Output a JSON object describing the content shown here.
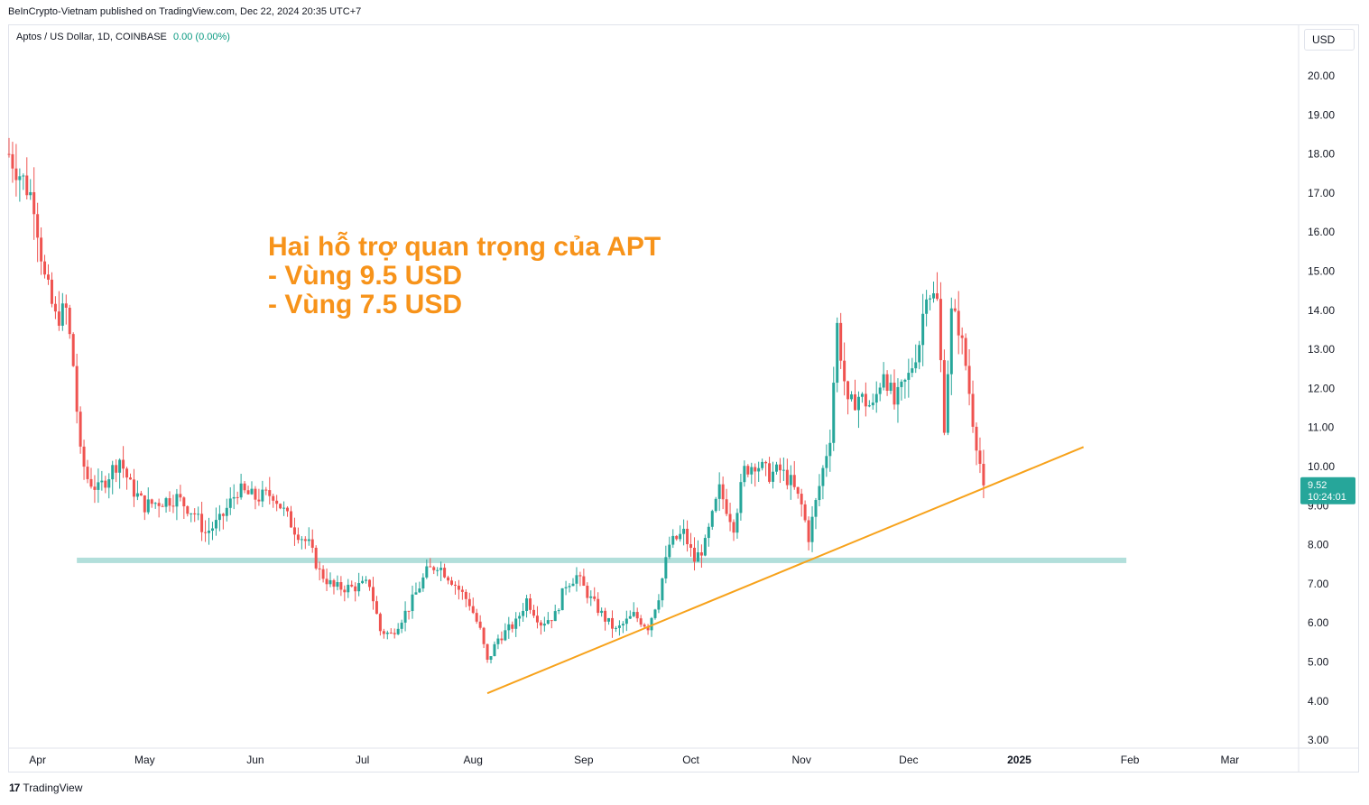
{
  "header": {
    "published": "BeInCrypto-Vietnam published on TradingView.com, Dec 22, 2024 20:35 UTC+7"
  },
  "symbol_bar": {
    "title": "Aptos / US Dollar, 1D, COINBASE",
    "change": "0.00 (0.00%)"
  },
  "currency_button": "USD",
  "footer": {
    "logo_text": "TradingView",
    "logo_mark": "17"
  },
  "colors": {
    "up": "#26a69a",
    "down": "#ef5350",
    "trendline": "#f7a21b",
    "support_zone": "#b2dfdb",
    "annotation": "#f7931a"
  },
  "chart_data": {
    "type": "candlestick",
    "annotation_lines": [
      "Hai hỗ trợ quan trọng của APT",
      "- Vùng 9.5 USD",
      "- Vùng 7.5 USD"
    ],
    "x_labels": [
      "Apr",
      "May",
      "Jun",
      "Jul",
      "Aug",
      "Sep",
      "Oct",
      "Nov",
      "Dec",
      "2025",
      "Feb",
      "Mar"
    ],
    "y_ticks": [
      "20.00",
      "19.00",
      "18.00",
      "17.00",
      "16.00",
      "15.00",
      "14.00",
      "13.00",
      "12.00",
      "11.00",
      "10.00",
      "9.00",
      "8.00",
      "7.00",
      "6.00",
      "5.00",
      "4.00",
      "3.00"
    ],
    "ylim": [
      3,
      21
    ],
    "x_range": [
      "2024-03-24",
      "2025-03-20"
    ],
    "last_price": {
      "value": "9.52",
      "countdown": "10:24:01"
    },
    "support_zone": {
      "value": 7.6,
      "from": "2024-04-12",
      "to": "2025-01-31"
    },
    "trendline": {
      "from": [
        "2024-08-05",
        4.2
      ],
      "to": [
        "2025-01-19",
        10.5
      ]
    },
    "keypoints": [
      [
        "2024-03-24",
        18.0
      ],
      [
        "2024-03-27",
        17.5
      ],
      [
        "2024-03-31",
        16.8
      ],
      [
        "2024-04-03",
        14.8
      ],
      [
        "2024-04-06",
        13.8
      ],
      [
        "2024-04-09",
        14.0
      ],
      [
        "2024-04-11",
        12.6
      ],
      [
        "2024-04-13",
        10.3
      ],
      [
        "2024-04-15",
        9.7
      ],
      [
        "2024-04-18",
        9.4
      ],
      [
        "2024-04-21",
        9.8
      ],
      [
        "2024-04-24",
        10.2
      ],
      [
        "2024-04-27",
        9.5
      ],
      [
        "2024-05-01",
        9.0
      ],
      [
        "2024-05-05",
        9.1
      ],
      [
        "2024-05-10",
        9.2
      ],
      [
        "2024-05-15",
        8.8
      ],
      [
        "2024-05-18",
        8.3
      ],
      [
        "2024-05-22",
        8.6
      ],
      [
        "2024-05-27",
        9.4
      ],
      [
        "2024-06-01",
        9.2
      ],
      [
        "2024-06-06",
        9.3
      ],
      [
        "2024-06-12",
        8.4
      ],
      [
        "2024-06-16",
        8.0
      ],
      [
        "2024-06-19",
        7.3
      ],
      [
        "2024-06-23",
        6.9
      ],
      [
        "2024-06-28",
        6.9
      ],
      [
        "2024-07-03",
        7.0
      ],
      [
        "2024-07-06",
        5.8
      ],
      [
        "2024-07-09",
        5.7
      ],
      [
        "2024-07-14",
        6.4
      ],
      [
        "2024-07-19",
        7.3
      ],
      [
        "2024-07-22",
        7.5
      ],
      [
        "2024-07-26",
        7.1
      ],
      [
        "2024-07-31",
        6.5
      ],
      [
        "2024-08-03",
        5.8
      ],
      [
        "2024-08-05",
        5.0
      ],
      [
        "2024-08-08",
        5.6
      ],
      [
        "2024-08-13",
        6.0
      ],
      [
        "2024-08-16",
        6.6
      ],
      [
        "2024-08-20",
        6.0
      ],
      [
        "2024-08-24",
        6.2
      ],
      [
        "2024-08-27",
        7.0
      ],
      [
        "2024-08-30",
        7.2
      ],
      [
        "2024-09-03",
        6.6
      ],
      [
        "2024-09-07",
        6.1
      ],
      [
        "2024-09-10",
        5.8
      ],
      [
        "2024-09-15",
        6.2
      ],
      [
        "2024-09-19",
        5.9
      ],
      [
        "2024-09-22",
        6.7
      ],
      [
        "2024-09-25",
        8.0
      ],
      [
        "2024-09-29",
        8.3
      ],
      [
        "2024-10-02",
        7.6
      ],
      [
        "2024-10-05",
        8.0
      ],
      [
        "2024-10-09",
        9.4
      ],
      [
        "2024-10-13",
        8.5
      ],
      [
        "2024-10-16",
        9.9
      ],
      [
        "2024-10-19",
        10.1
      ],
      [
        "2024-10-23",
        9.8
      ],
      [
        "2024-10-26",
        9.9
      ],
      [
        "2024-10-29",
        9.6
      ],
      [
        "2024-11-01",
        9.0
      ],
      [
        "2024-11-03",
        8.2
      ],
      [
        "2024-11-06",
        9.5
      ],
      [
        "2024-11-09",
        10.8
      ],
      [
        "2024-11-11",
        13.6
      ],
      [
        "2024-11-14",
        11.5
      ],
      [
        "2024-11-17",
        11.8
      ],
      [
        "2024-11-21",
        11.5
      ],
      [
        "2024-11-24",
        12.5
      ],
      [
        "2024-11-27",
        11.6
      ],
      [
        "2024-12-01",
        12.3
      ],
      [
        "2024-12-04",
        13.2
      ],
      [
        "2024-12-06",
        14.6
      ],
      [
        "2024-12-09",
        14.2
      ],
      [
        "2024-12-11",
        11.1
      ],
      [
        "2024-12-13",
        13.9
      ],
      [
        "2024-12-15",
        13.6
      ],
      [
        "2024-12-17",
        12.6
      ],
      [
        "2024-12-19",
        11.2
      ],
      [
        "2024-12-22",
        9.52
      ]
    ]
  }
}
